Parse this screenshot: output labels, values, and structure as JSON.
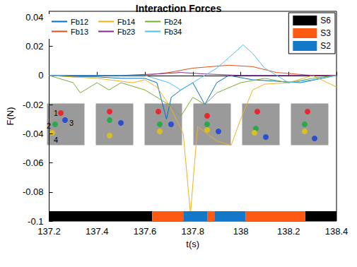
{
  "chart_data": {
    "type": "line",
    "title": "Interaction Forces",
    "x_label": "t(s)",
    "y_label": "F(N)",
    "xlim": [
      137.2,
      138.4
    ],
    "xticks": [
      137.2,
      137.4,
      137.6,
      137.8,
      138,
      138.2,
      138.4
    ],
    "ylim": [
      -0.1,
      0.044
    ],
    "yticks": [
      -0.1,
      -0.08,
      -0.06,
      -0.04,
      -0.02,
      0,
      0.02,
      0.04
    ],
    "grid": false,
    "legend": "upper left",
    "series": [
      {
        "name": "Fb12",
        "color": "#0072BD",
        "x": [
          137.2,
          137.3,
          137.4,
          137.5,
          137.6,
          137.65,
          137.69,
          137.71,
          137.75,
          137.8,
          137.85,
          137.9,
          137.95,
          138.05,
          138.15,
          138.25,
          138.4
        ],
        "values": [
          0,
          -0.001,
          -0.001,
          -0.002,
          -0.002,
          -0.005,
          -0.03,
          -0.015,
          -0.01,
          -0.005,
          -0.02,
          -0.005,
          0,
          -0.003,
          -0.004,
          -0.005,
          0
        ]
      },
      {
        "name": "Fb13",
        "color": "#D95319",
        "x": [
          137.2,
          137.4,
          137.6,
          137.7,
          137.8,
          137.95,
          138.05,
          138.15,
          138.3,
          138.4
        ],
        "values": [
          0,
          0,
          0,
          0.002,
          0.005,
          0.007,
          0.006,
          0.002,
          0,
          0
        ]
      },
      {
        "name": "Fb14",
        "color": "#EDB120",
        "x": [
          137.2,
          137.4,
          137.55,
          137.6,
          137.65,
          137.7,
          137.73,
          137.76,
          137.79,
          137.82,
          137.9,
          137.96,
          138,
          138.05,
          138.1,
          138.2,
          138.3,
          138.4
        ],
        "values": [
          0,
          -0.002,
          -0.005,
          -0.003,
          -0.008,
          -0.02,
          -0.03,
          -0.04,
          -0.095,
          -0.035,
          -0.045,
          -0.048,
          -0.03,
          -0.01,
          -0.006,
          -0.005,
          0,
          -0.008
        ]
      },
      {
        "name": "Fb23",
        "color": "#7E2F8E",
        "x": [
          137.2,
          137.5,
          137.65,
          137.75,
          137.85,
          138,
          138.2,
          138.4
        ],
        "values": [
          0,
          0,
          0.001,
          0.002,
          0.001,
          0,
          0,
          0
        ]
      },
      {
        "name": "Fb24",
        "color": "#77AC30",
        "x": [
          137.2,
          137.3,
          137.33,
          137.4,
          137.45,
          137.5,
          137.6,
          137.7,
          137.75,
          137.8,
          137.85,
          137.9,
          138,
          138.1,
          138.2,
          138.3,
          138.4
        ],
        "values": [
          0,
          -0.005,
          -0.012,
          -0.005,
          -0.01,
          -0.005,
          -0.01,
          -0.02,
          -0.028,
          -0.015,
          -0.02,
          -0.012,
          -0.005,
          -0.002,
          -0.005,
          -0.002,
          0
        ]
      },
      {
        "name": "Fb34",
        "color": "#4DBEEE",
        "x": [
          137.2,
          137.4,
          137.6,
          137.7,
          137.75,
          137.8,
          137.9,
          137.97,
          138.01,
          138.05,
          138.1,
          138.2,
          138.3,
          138.4
        ],
        "values": [
          0,
          0,
          0,
          -0.005,
          -0.01,
          -0.005,
          0.005,
          0.015,
          0.021,
          0.015,
          0.005,
          -0.005,
          -0.003,
          0
        ]
      }
    ],
    "states": [
      {
        "name": "S6",
        "color": "#000000"
      },
      {
        "name": "S3",
        "color": "#FF5A14"
      },
      {
        "name": "S2",
        "color": "#1478C8"
      }
    ],
    "segments": [
      {
        "state": "S6",
        "start": 137.2,
        "end": 137.63
      },
      {
        "state": "S3",
        "start": 137.63,
        "end": 137.76
      },
      {
        "state": "S2",
        "start": 137.76,
        "end": 137.86
      },
      {
        "state": "S3",
        "start": 137.86,
        "end": 137.89
      },
      {
        "state": "S2",
        "start": 137.89,
        "end": 138.02
      },
      {
        "state": "S3",
        "start": 138.02,
        "end": 138.27
      },
      {
        "state": "S6",
        "start": 138.27,
        "end": 138.4
      }
    ],
    "annotations": [
      "1",
      "2",
      "3",
      "4"
    ]
  }
}
